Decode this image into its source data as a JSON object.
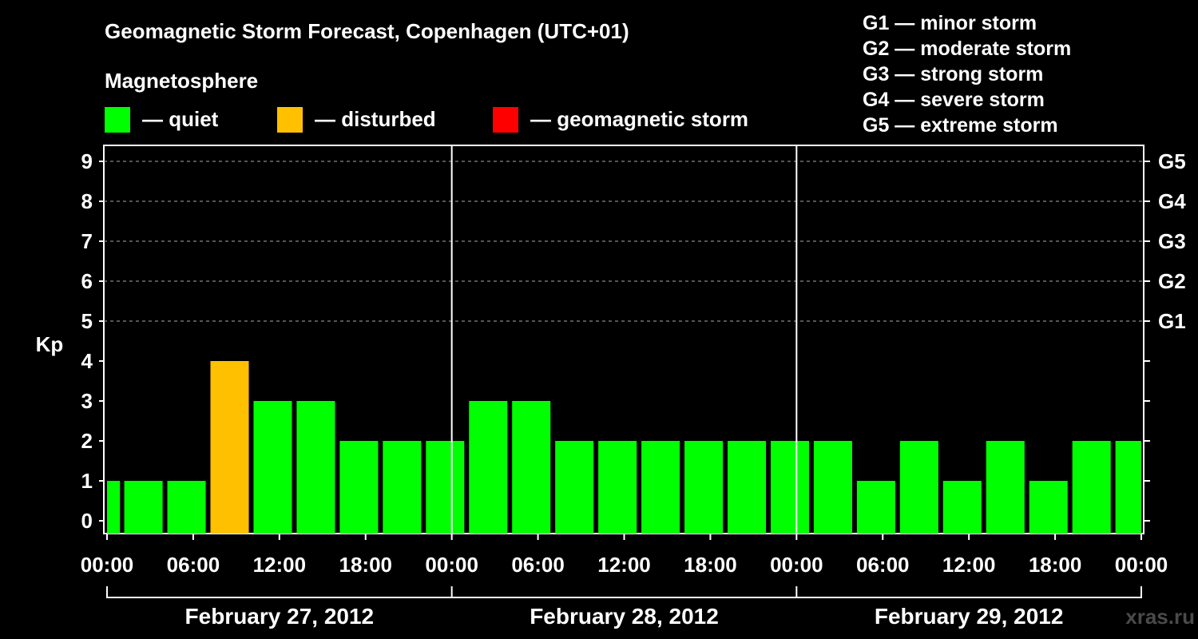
{
  "title": "Geomagnetic Storm Forecast, Copenhagen (UTC+01)",
  "magnetosphere_label": "Magnetosphere",
  "legend": [
    {
      "label": "— quiet",
      "color": "#00ff00"
    },
    {
      "label": "— disturbed",
      "color": "#ffc000"
    },
    {
      "label": "— geomagnetic storm",
      "color": "#ff0000"
    }
  ],
  "g_scale": [
    "G1 — minor storm",
    "G2 — moderate storm",
    "G3 — strong storm",
    "G4 — severe storm",
    "G5 — extreme storm"
  ],
  "watermark": "xras.ru",
  "chart_data": {
    "type": "bar",
    "ylabel": "Kp",
    "ylim": [
      0,
      9
    ],
    "yticks": [
      0,
      1,
      2,
      3,
      4,
      5,
      6,
      7,
      8,
      9
    ],
    "right_ticks": [
      {
        "value": 5,
        "label": "G1"
      },
      {
        "value": 6,
        "label": "G2"
      },
      {
        "value": 7,
        "label": "G3"
      },
      {
        "value": 8,
        "label": "G4"
      },
      {
        "value": 9,
        "label": "G5"
      }
    ],
    "xtick_labels": [
      "00:00",
      "06:00",
      "12:00",
      "18:00",
      "00:00",
      "06:00",
      "12:00",
      "18:00",
      "00:00",
      "06:00",
      "12:00",
      "18:00",
      "00:00"
    ],
    "days": [
      "February 27, 2012",
      "February 28, 2012",
      "February 29, 2012"
    ],
    "grid": "dashed horizontal at Kp 5-9",
    "bar_interval_hours": 3,
    "first_bar_partial": true,
    "values": [
      1,
      1,
      1,
      4,
      3,
      3,
      2,
      2,
      2,
      3,
      3,
      2,
      2,
      2,
      2,
      2,
      2,
      2,
      1,
      2,
      1,
      2,
      1,
      2,
      2
    ],
    "categories_color": [
      "quiet",
      "quiet",
      "quiet",
      "disturbed",
      "quiet",
      "quiet",
      "quiet",
      "quiet",
      "quiet",
      "quiet",
      "quiet",
      "quiet",
      "quiet",
      "quiet",
      "quiet",
      "quiet",
      "quiet",
      "quiet",
      "quiet",
      "quiet",
      "quiet",
      "quiet",
      "quiet",
      "quiet",
      "quiet"
    ]
  }
}
